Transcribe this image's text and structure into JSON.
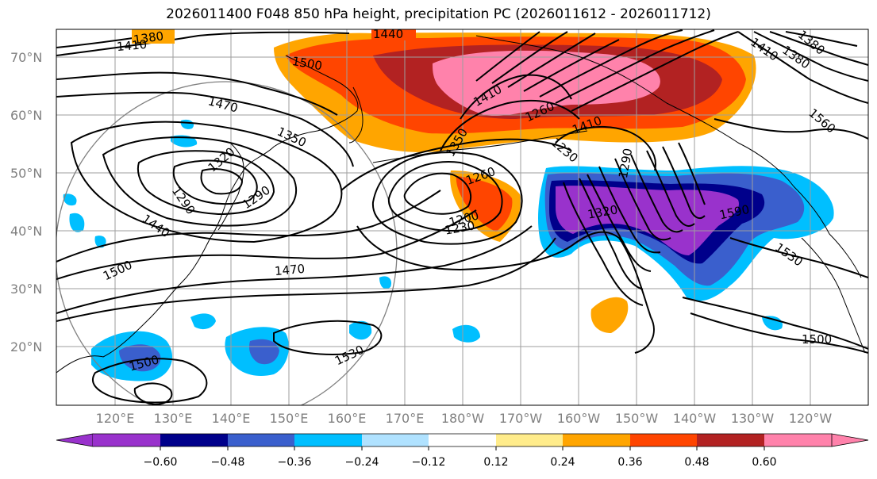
{
  "title": "2026011400 F048 850 hPa height, precipitation PC (2026011612 - 2026011712)",
  "lat_labels": [
    "70°N",
    "60°N",
    "50°N",
    "40°N",
    "30°N",
    "20°N"
  ],
  "lon_labels": [
    "120°E",
    "130°E",
    "140°E",
    "150°E",
    "160°E",
    "170°E",
    "180°W",
    "170°W",
    "160°W",
    "150°W",
    "140°W",
    "130°W",
    "120°W"
  ],
  "contour_labels": [
    "1380",
    "1410",
    "1440",
    "1500",
    "1470",
    "1410",
    "1350",
    "1260",
    "1230",
    "1290",
    "1410",
    "1380",
    "1350",
    "1320",
    "1290",
    "1440",
    "1500",
    "1470",
    "1290",
    "1260",
    "1200",
    "1230",
    "1320",
    "1380",
    "1530",
    "1560",
    "1410",
    "1500",
    "1530",
    "1500",
    "1590"
  ],
  "colorbar": {
    "colors": [
      "#9932cc",
      "#00008b",
      "#3a5fcd",
      "#00bfff",
      "#b0e2ff",
      "#ffffff",
      "#ffec8b",
      "#ffa500",
      "#ff4500",
      "#b22222",
      "#ff82ab"
    ],
    "tick_labels": [
      "−0.60",
      "−0.48",
      "−0.36",
      "−0.24",
      "−0.12",
      "0.12",
      "0.24",
      "0.36",
      "0.48",
      "0.60"
    ]
  },
  "colors": {
    "pos_1": "#ffa500",
    "pos_2": "#ff4500",
    "pos_3": "#b22222",
    "pos_4": "#ff82ab",
    "neg_1": "#00bfff",
    "neg_2": "#3a5fcd",
    "neg_3": "#00008b",
    "neg_4": "#9932cc",
    "grid": "#9e9e9e",
    "contour": "#000000"
  }
}
